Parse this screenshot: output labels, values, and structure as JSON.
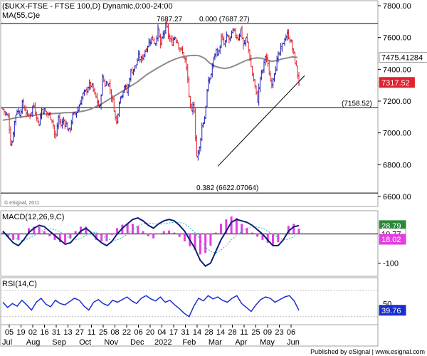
{
  "header": {
    "symbol": "($UKX-FTSE - FTSE 100,D) Dynamic,0:00-24:00",
    "ma_label": "MA(55,C)e",
    "esignal_note": "© eSignal, 2011",
    "publisher": "Published by eSignal | www.esignal.com"
  },
  "colors": {
    "background": "#ffffff",
    "frame": "#a0a0a0",
    "up_bar": "#1c1cb4",
    "down_bar": "#e0232d",
    "ma_line": "#8c8c8c",
    "black_line": "#000000",
    "macd_line": "#0b1f7a",
    "signal_line": "#2ab7b0",
    "histogram": "#e23fe0",
    "rsi_line": "#1a2fd0",
    "axis_box": "#ffffff"
  },
  "chart_data": [
    {
      "type": "candlestick",
      "title": "($UKX-FTSE - FTSE 100,D) Dynamic,0:00-24:00",
      "ylim": [
        6600,
        7800
      ],
      "y_ticks": [
        "7800.00",
        "7600.00",
        "7400.00",
        "7200.00",
        "7000.00",
        "6800.00",
        "6600.00"
      ],
      "grid": false,
      "x_tick_labels": [
        "05",
        "19",
        "02",
        "16",
        "31",
        "13",
        "27",
        "11",
        "25",
        "08",
        "22",
        "06",
        "20",
        "04",
        "17",
        "31",
        "14",
        "28",
        "14",
        "28",
        "11",
        "25",
        "09",
        "23",
        "06"
      ],
      "x_month_labels": [
        "Jul",
        "Aug",
        "Sep",
        "Oct",
        "Nov",
        "Dec",
        "2022",
        "Feb",
        "Mar",
        "Apr",
        "May",
        "Jun"
      ],
      "ohlc_path": [
        7150,
        7120,
        7100,
        6900,
        7050,
        7150,
        7120,
        7180,
        7150,
        7100,
        7120,
        7180,
        7120,
        7050,
        7150,
        7140,
        7120,
        7110,
        7080,
        6950,
        7100,
        7050,
        7080,
        7050,
        7000,
        7100,
        7120,
        7140,
        7200,
        7240,
        7260,
        7300,
        7300,
        7250,
        7200,
        7150,
        7350,
        7300,
        7330,
        7250,
        7180,
        7050,
        7200,
        7250,
        7300,
        7250,
        7380,
        7400,
        7420,
        7480,
        7460,
        7500,
        7540,
        7580,
        7600,
        7560,
        7650,
        7550,
        7620,
        7680,
        7600,
        7560,
        7610,
        7580,
        7530,
        7500,
        7450,
        7300,
        7100,
        7200,
        6850,
        6900,
        7050,
        7100,
        7300,
        7350,
        7450,
        7520,
        7500,
        7600,
        7550,
        7610,
        7580,
        7640,
        7620,
        7600,
        7650,
        7540,
        7600,
        7500,
        7380,
        7300,
        7200,
        7350,
        7400,
        7500,
        7400,
        7300,
        7380,
        7450,
        7500,
        7550,
        7600,
        7620,
        7580,
        7500,
        7420,
        7317
      ],
      "ma_path": [
        7080,
        7085,
        7092,
        7098,
        7102,
        7106,
        7110,
        7115,
        7118,
        7120,
        7122,
        7124,
        7127,
        7128,
        7130,
        7134,
        7140,
        7150,
        7165,
        7180,
        7200,
        7220,
        7240,
        7260,
        7280,
        7300,
        7320,
        7345,
        7370,
        7390,
        7410,
        7428,
        7445,
        7460,
        7472,
        7480,
        7485,
        7488,
        7485,
        7470,
        7440,
        7420,
        7410,
        7405,
        7412,
        7425,
        7440,
        7455,
        7465,
        7472,
        7470,
        7460,
        7450,
        7455,
        7465,
        7472,
        7478,
        7475
      ],
      "annotations": [
        {
          "label": "7687.27",
          "type": "price"
        },
        {
          "label": "0.000 (7687.27)",
          "type": "fib",
          "value": 7687.27
        },
        {
          "label": "(7158.52)",
          "type": "level",
          "value": 7158.52
        },
        {
          "label": "0.382 (6622.07064)",
          "type": "fib",
          "value": 6622.07064
        }
      ],
      "trendline": [
        {
          "x_frac": 0.0,
          "value": 6790
        },
        {
          "x_frac": 1.0,
          "value": 7360
        }
      ],
      "value_tags": [
        {
          "label": "7475.41284",
          "value": 7475.41284,
          "kind": "ma"
        },
        {
          "label": "7317.52",
          "value": 7317.52,
          "kind": "price"
        }
      ]
    },
    {
      "type": "line",
      "title": "MACD(12,26,9,C)",
      "ylim": [
        -140,
        70
      ],
      "y_ticks": [
        "-100"
      ],
      "zero_line": 0,
      "series": [
        {
          "name": "MACD",
          "values": [
            10,
            -10,
            -30,
            -40,
            -20,
            5,
            20,
            30,
            25,
            10,
            -5,
            -20,
            -35,
            -30,
            -10,
            10,
            20,
            5,
            -15,
            -30,
            -40,
            -25,
            0,
            20,
            35,
            50,
            55,
            45,
            30,
            20,
            35,
            45,
            50,
            45,
            30,
            10,
            -20,
            -50,
            -90,
            -110,
            -100,
            -60,
            -20,
            10,
            40,
            50,
            45,
            40,
            30,
            15,
            0,
            -20,
            -40,
            -40,
            -20,
            10,
            25,
            28.79
          ]
        },
        {
          "values": [
            5,
            0,
            -10,
            -20,
            -22,
            -15,
            -5,
            5,
            15,
            18,
            15,
            8,
            -5,
            -15,
            -20,
            -15,
            -5,
            5,
            5,
            -5,
            -15,
            -22,
            -20,
            -12,
            0,
            15,
            28,
            35,
            38,
            35,
            33,
            35,
            38,
            40,
            40,
            35,
            22,
            5,
            -20,
            -45,
            -60,
            -65,
            -55,
            -40,
            -20,
            -5,
            10,
            20,
            25,
            24,
            20,
            10,
            -2,
            -12,
            -20,
            -18,
            -10,
            10.77
          ]
        }
      ],
      "value_tags": [
        {
          "label": "28.79",
          "value": 28.79,
          "kind": "macd"
        },
        {
          "label": "10.77",
          "value": 10.77,
          "kind": "signal"
        },
        {
          "label": "18.02",
          "value": 18.02,
          "kind": "histogram"
        }
      ]
    },
    {
      "type": "line",
      "title": "RSI(14,C)",
      "ylim": [
        20,
        85
      ],
      "y_ticks": [
        "50"
      ],
      "series": [
        {
          "values": [
            52,
            44,
            50,
            46,
            55,
            48,
            40,
            52,
            58,
            49,
            45,
            55,
            50,
            48,
            53,
            58,
            55,
            46,
            40,
            52,
            56,
            50,
            47,
            55,
            52,
            56,
            60,
            54,
            50,
            58,
            62,
            57,
            54,
            60,
            52,
            55,
            48,
            42,
            35,
            30,
            46,
            58,
            54,
            62,
            57,
            60,
            55,
            52,
            58,
            62,
            50,
            44,
            38,
            48,
            56,
            60,
            58,
            52,
            56,
            60,
            62,
            54,
            39.76
          ]
        }
      ],
      "value_tags": [
        {
          "label": "39.76",
          "value": 39.76,
          "kind": "rsi"
        }
      ]
    }
  ]
}
